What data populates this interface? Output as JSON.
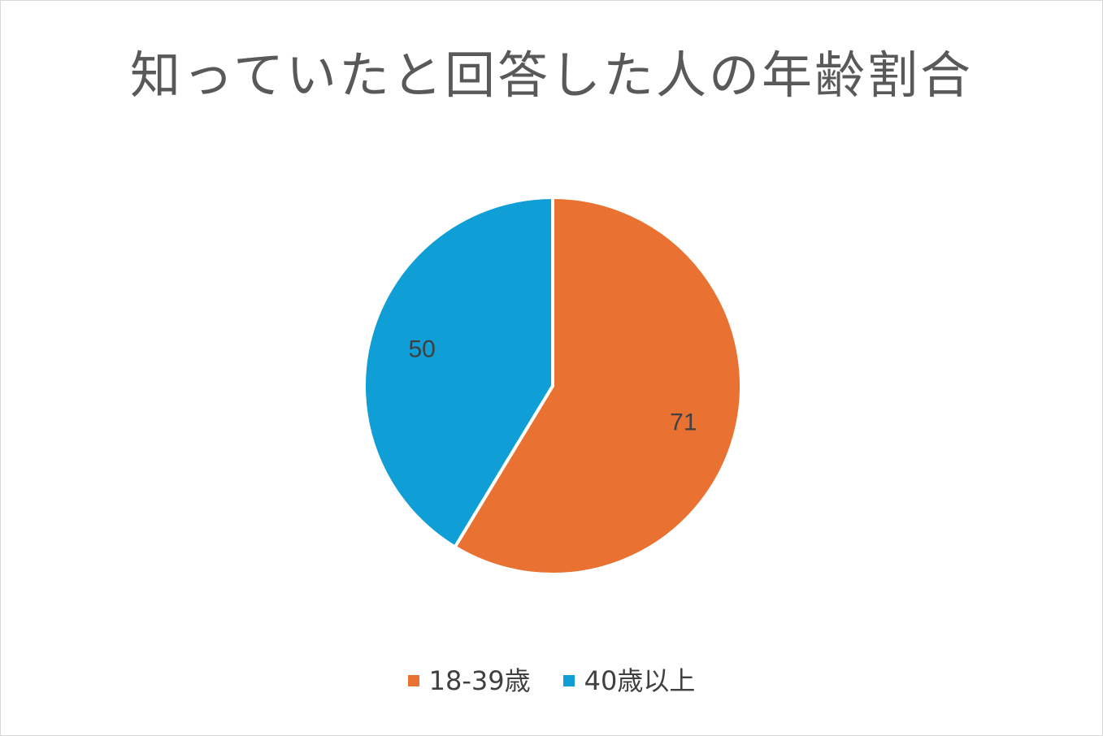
{
  "chart_data": {
    "type": "pie",
    "title": "知っていたと回答した人の年齢割合",
    "categories": [
      "18-39歳",
      "40歳以上"
    ],
    "values": [
      71,
      50
    ],
    "colors": [
      "#e97132",
      "#0f9ed5"
    ],
    "start_angle_deg": 0,
    "direction": "clockwise",
    "data_labels": [
      "71",
      "50"
    ],
    "legend_position": "bottom"
  }
}
